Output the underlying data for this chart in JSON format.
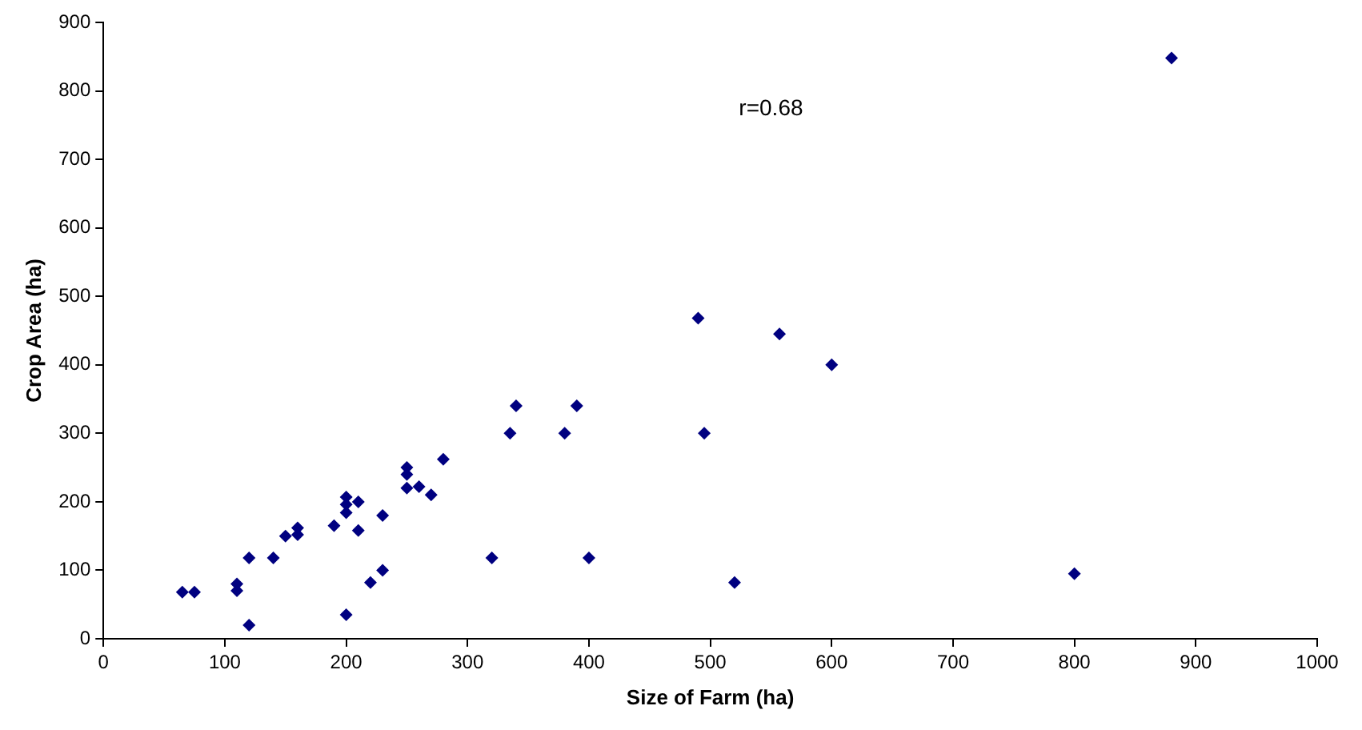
{
  "chart_data": {
    "type": "scatter",
    "xlabel": "Size of Farm (ha)",
    "ylabel": "Crop Area (ha)",
    "annotations": [
      "r=0.68"
    ],
    "x": [
      65,
      75,
      110,
      110,
      120,
      120,
      140,
      150,
      160,
      160,
      190,
      200,
      200,
      200,
      200,
      210,
      210,
      220,
      230,
      230,
      250,
      250,
      250,
      260,
      270,
      280,
      320,
      335,
      340,
      380,
      390,
      400,
      490,
      495,
      520,
      557,
      600,
      800,
      880
    ],
    "series": [
      {
        "color": "#000080",
        "values": [
          68,
          68,
          70,
          80,
          20,
          118,
          118,
          150,
          152,
          162,
          165,
          35,
          184,
          196,
          207,
          158,
          200,
          82,
          100,
          180,
          220,
          240,
          250,
          222,
          210,
          262,
          118,
          300,
          340,
          300,
          340,
          118,
          468,
          300,
          82,
          445,
          400,
          95,
          848
        ]
      }
    ],
    "xlim": [
      0,
      1000
    ],
    "xticks": [
      0,
      100,
      200,
      300,
      400,
      500,
      600,
      700,
      800,
      900,
      1000
    ],
    "ylim": [
      0,
      900
    ],
    "yticks": [
      0,
      100,
      200,
      300,
      400,
      500,
      600,
      700,
      800,
      900
    ],
    "grid": false,
    "legend": false,
    "marker": "diamond"
  }
}
